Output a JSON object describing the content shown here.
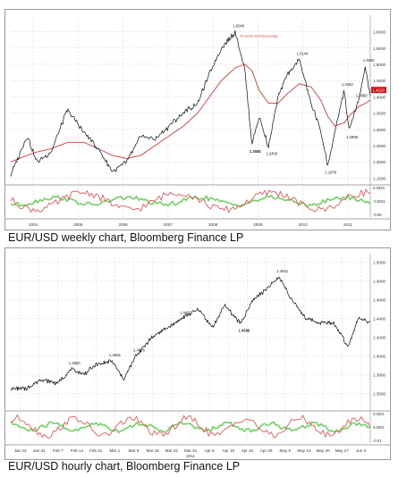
{
  "captions": {
    "weekly": "EUR/USD weekly chart, Bloomberg Finance LP",
    "hourly": "EUR/USD hourly chart, Bloomberg Finance LP"
  },
  "colors": {
    "price": "#1a1a1a",
    "moving_average": "#d23a3a",
    "oscillator_red": "#e05a5a",
    "oscillator_green": "#58c84a",
    "grid": "#d9d9d9",
    "last_price_tag": "#d01010"
  },
  "chart_data": [
    {
      "type": "line",
      "title": "",
      "x_tick_labels": [
        "2004",
        "2005",
        "2006",
        "2007",
        "2008",
        "2009",
        "2010",
        "2011"
      ],
      "x": [
        2003.75,
        2004.1,
        2004.3,
        2004.6,
        2004.95,
        2005.3,
        2005.6,
        2005.9,
        2006.2,
        2006.5,
        2006.8,
        2007.1,
        2007.4,
        2007.7,
        2007.95,
        2008.2,
        2008.5,
        2008.7,
        2008.85,
        2009.0,
        2009.2,
        2009.4,
        2009.6,
        2009.85,
        2010.1,
        2010.3,
        2010.45,
        2010.6,
        2010.8,
        2010.9,
        2011.1,
        2011.25,
        2011.35
      ],
      "series": [
        {
          "values": [
            1.16,
            1.28,
            1.2,
            1.23,
            1.36,
            1.29,
            1.24,
            1.17,
            1.2,
            1.28,
            1.27,
            1.31,
            1.35,
            1.38,
            1.47,
            1.55,
            1.6,
            1.48,
            1.2531,
            1.34,
            1.2458,
            1.4,
            1.47,
            1.5144,
            1.38,
            1.3,
            1.1876,
            1.29,
            1.42,
            1.2968,
            1.386,
            1.494,
            1.395
          ]
        },
        {
          "name": "52 week moving average",
          "values": [
            1.2,
            1.22,
            1.23,
            1.24,
            1.26,
            1.26,
            1.24,
            1.22,
            1.21,
            1.22,
            1.25,
            1.28,
            1.31,
            1.35,
            1.4,
            1.45,
            1.49,
            1.5,
            1.48,
            1.42,
            1.38,
            1.38,
            1.41,
            1.44,
            1.43,
            1.39,
            1.34,
            1.31,
            1.32,
            1.34,
            1.37,
            1.38,
            1.39
          ]
        }
      ],
      "annotations": [
        "1.6040",
        "1.5144",
        "1.4282",
        "1.4940",
        "1.2531",
        "1.2458",
        "1.1876",
        "1.2588",
        "1.2968",
        "1.3860"
      ],
      "ma_label": "52 week moving average",
      "y_tick_labels": [
        "1.6000",
        "1.5500",
        "1.5000",
        "1.4500",
        "1.4000",
        "1.3500",
        "1.3000",
        "1.2500",
        "1.2000",
        "1.1500"
      ],
      "last_price_label": "1.4210",
      "ylim": [
        1.14,
        1.64
      ],
      "grid": true,
      "oscillator_ticks": [
        "0.0033",
        "-0.0011",
        "-0.05"
      ]
    },
    {
      "type": "line",
      "title": "",
      "x_tick_labels": [
        "Jan 23",
        "Jan 31",
        "Feb 7",
        "Feb 14",
        "Feb 21",
        "Mar 1",
        "Mar 8",
        "Mar 15",
        "Mar 22",
        "Mar 31",
        "Apr 8",
        "Apr 15",
        "Apr 22",
        "Apr 29",
        "May 6",
        "May 13",
        "May 20",
        "May 27",
        "Jun 3"
      ],
      "x_sublabel": "2011",
      "x": [
        0,
        0.8,
        1.5,
        2.3,
        3.0,
        3.6,
        4.2,
        5.0,
        5.6,
        6.2,
        7.0,
        7.8,
        8.5,
        9.3,
        10.0,
        10.6,
        11.4,
        12.0,
        12.6,
        13.3,
        13.9,
        14.6,
        15.3,
        16.0,
        16.7,
        17.2,
        17.8
      ],
      "series": [
        {
          "values": [
            1.365,
            1.365,
            1.375,
            1.37,
            1.386,
            1.38,
            1.39,
            1.3945,
            1.375,
            1.4,
            1.42,
            1.43,
            1.44,
            1.45,
            1.43,
            1.454,
            1.434,
            1.46,
            1.47,
            1.484,
            1.46,
            1.44,
            1.435,
            1.435,
            1.41,
            1.44,
            1.436
          ]
        }
      ],
      "annotations": [
        "1.3860",
        "1.3945",
        "1.4340",
        "1.4941",
        "1.4005",
        "1.4401",
        "1.4339"
      ],
      "y_tick_labels": [
        "1.5000",
        "1.4800",
        "1.4600",
        "1.4400",
        "1.4200",
        "1.4000",
        "1.3800",
        "1.3600"
      ],
      "ylim": [
        1.345,
        1.505
      ],
      "grid": true,
      "oscillator_ticks": [
        "0.0021",
        "0.0001",
        "-0.01"
      ]
    }
  ]
}
